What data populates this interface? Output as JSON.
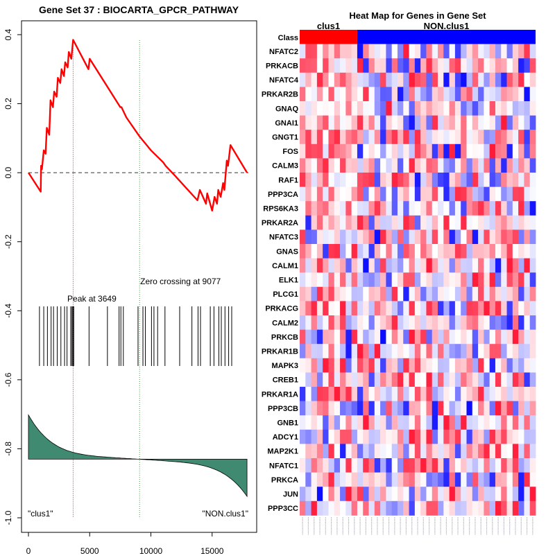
{
  "chart_data": [
    {
      "type": "line",
      "title": "Gene Set  37 : BIOCARTA_GPCR_PATHWAY",
      "xlim": [
        0,
        18000
      ],
      "ylim": [
        -1.0,
        0.4
      ],
      "xticks": [
        0,
        5000,
        10000,
        15000
      ],
      "xtick_labels": [
        "0",
        "5000",
        "10000",
        "15000"
      ],
      "yticks": [
        0.4,
        0.2,
        0.0,
        -0.2,
        -0.4,
        -0.6,
        -0.8,
        -1.0
      ],
      "ytick_labels": [
        "0.4",
        "0.2",
        "0.0",
        "-0.2",
        "-0.4",
        "-0.6",
        "-0.8",
        "-1.0"
      ],
      "running_es": {
        "x": [
          0,
          1000,
          1030,
          1100,
          1250,
          1400,
          1500,
          1700,
          1800,
          2000,
          2100,
          2300,
          2400,
          2600,
          2700,
          2900,
          3000,
          3200,
          3300,
          3500,
          3649,
          4900,
          5000,
          7500,
          7600,
          8000,
          9077,
          10000,
          11000,
          11200,
          12000,
          13800,
          14000,
          14500,
          14600,
          15000,
          15200,
          15400,
          15500,
          15700,
          15900,
          16000,
          16200,
          16300,
          16500,
          17850
        ],
        "y": [
          0.0,
          -0.055,
          0.02,
          0.01,
          0.065,
          0.055,
          0.13,
          0.11,
          0.21,
          0.19,
          0.235,
          0.22,
          0.275,
          0.26,
          0.3,
          0.28,
          0.32,
          0.305,
          0.35,
          0.33,
          0.385,
          0.3,
          0.33,
          0.19,
          0.19,
          0.16,
          0.105,
          0.065,
          0.03,
          0.02,
          -0.01,
          -0.08,
          -0.05,
          -0.09,
          -0.06,
          -0.11,
          -0.07,
          -0.09,
          -0.05,
          -0.07,
          -0.03,
          -0.05,
          0.035,
          0.02,
          0.08,
          0.0
        ]
      },
      "zero_line": 0.0,
      "hit_positions": [
        900,
        1250,
        1550,
        1850,
        2050,
        2350,
        2650,
        2950,
        3150,
        3450,
        3550,
        3620,
        3649,
        3700,
        4950,
        6450,
        7400,
        7550,
        7750,
        8950,
        9350,
        9550,
        10050,
        10250,
        10550,
        11150,
        12350,
        13350,
        13850,
        14050,
        14850,
        15150,
        15550,
        15750,
        16050,
        16350,
        16600
      ],
      "peak": {
        "x": 3649,
        "label": "Peak at 3649",
        "color": "#ff0000"
      },
      "zero_crossing": {
        "x": 9077,
        "label": "Zero crossing at 9077",
        "color": "#00cc00"
      },
      "ranked_metric": {
        "start": 0.27,
        "end": -0.22,
        "baseline_y": -0.83,
        "scale": 0.4,
        "fill": "#3f8a70"
      },
      "left_label": "\"clus1\"",
      "right_label": "\"NON.clus1\""
    },
    {
      "type": "heatmap",
      "title": "Heat Map for Genes in Gene Set",
      "class_label": "Class",
      "class_groups": [
        {
          "name": "clus1",
          "count": 10,
          "color": "#ff0000"
        },
        {
          "name": "NON.clus1",
          "count": 31,
          "color": "#0000ff"
        }
      ],
      "genes": [
        "NFATC2",
        "PRKACB",
        "NFATC4",
        "PRKAR2B",
        "GNAQ",
        "GNAI1",
        "GNGT1",
        "FOS",
        "CALM3",
        "RAF1",
        "PPP3CA",
        "RPS6KA3",
        "PRKAR2A",
        "NFATC3",
        "GNAS",
        "CALM1",
        "ELK1",
        "PLCG1",
        "PRKACG",
        "CALM2",
        "PRKCB",
        "PRKAR1B",
        "MAPK3",
        "CREB1",
        "PRKAR1A",
        "PPP3CB",
        "GNB1",
        "ADCY1",
        "MAP2K1",
        "NFATC1",
        "PRKCA",
        "JUN",
        "PPP3CC"
      ],
      "n_samples": 41,
      "color_scale": {
        "low": "#0000ff",
        "mid": "#ffffff",
        "high": "#ff0000"
      }
    }
  ]
}
